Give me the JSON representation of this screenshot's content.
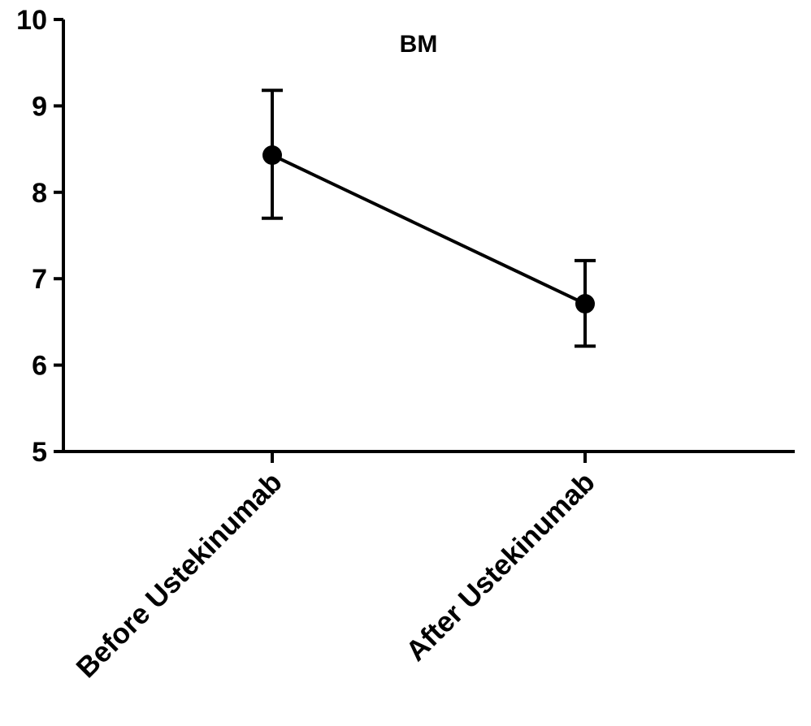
{
  "chart_data": {
    "type": "line",
    "title": "BM",
    "xlabel": "",
    "ylabel": "",
    "categories": [
      "Before Ustekinumab",
      "After Ustekinumab"
    ],
    "series": [
      {
        "values": [
          8.43,
          6.71
        ],
        "error_low": [
          7.7,
          6.22
        ],
        "error_high": [
          9.18,
          7.21
        ]
      }
    ],
    "ylim": [
      5,
      10
    ],
    "yticks": [
      "5",
      "6",
      "7",
      "8",
      "9",
      "10"
    ],
    "grid": false,
    "legend": "none",
    "colors": {
      "line": "#000000",
      "marker": "#000000"
    }
  }
}
